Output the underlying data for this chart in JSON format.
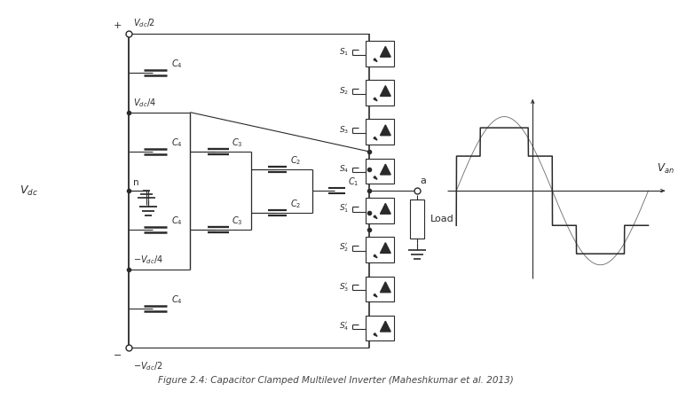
{
  "fig_width": 7.64,
  "fig_height": 4.5,
  "bg_color": "#ffffff",
  "line_color": "#2a2a2a",
  "lw": 0.8,
  "title": "Figure 2.4: Capacitor Clamped Multilevel Inverter (Maheshkumar et al. 2013)",
  "sw_labels_top": [
    "$S_1$",
    "$S_2$",
    "$S_3$",
    "$S_4$"
  ],
  "sw_labels_bot": [
    "$S_1'$",
    "$S_2'$",
    "$S_3'$",
    "$S_4'$"
  ]
}
